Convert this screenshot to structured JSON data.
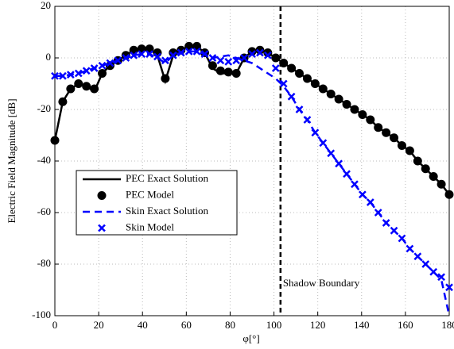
{
  "chart_data": {
    "type": "line",
    "xlabel": "φ[°]",
    "ylabel": "Electric Field Magnitude [dB]",
    "x": [
      0,
      3.6,
      7.2,
      10.8,
      14.4,
      18,
      21.6,
      25.2,
      28.8,
      32.4,
      36,
      39.6,
      43.2,
      46.8,
      50.4,
      54,
      57.6,
      61.2,
      64.8,
      68.4,
      72,
      75.6,
      79.2,
      82.8,
      86.4,
      90,
      93.6,
      97.2,
      100.8,
      104.4,
      108,
      111.6,
      115.2,
      118.8,
      122.4,
      126,
      129.6,
      133.2,
      136.8,
      140.4,
      144,
      147.6,
      151.2,
      154.8,
      158.4,
      162,
      165.6,
      169.2,
      172.8,
      176.4,
      180
    ],
    "series": [
      {
        "name": "PEC Exact Solution",
        "color": "#000000",
        "linestyle": "solid",
        "marker": "none",
        "values": [
          -32,
          -17,
          -12,
          -10,
          -11,
          -13,
          -6,
          -3,
          -1,
          1,
          3,
          3.5,
          3.5,
          1,
          -9,
          1,
          3,
          4.5,
          4.5,
          2,
          -4,
          -6,
          -6,
          -6,
          0,
          2.5,
          3,
          2,
          0,
          -2,
          -4,
          -6,
          -8,
          -10,
          -12,
          -14,
          -16,
          -18,
          -20,
          -22,
          -24,
          -27,
          -29,
          -31,
          -34,
          -36,
          -40,
          -43,
          -46,
          -49,
          -53
        ]
      },
      {
        "name": "PEC Model",
        "color": "#000000",
        "linestyle": "none",
        "marker": "circle",
        "values": [
          -32,
          -17,
          -12,
          -10,
          -11,
          -12,
          -6,
          -3,
          -1,
          1,
          3,
          3.5,
          3.5,
          2,
          -8,
          2,
          3,
          4.5,
          4.5,
          2,
          -3,
          -5,
          -5.5,
          -6,
          0,
          2.5,
          3,
          2,
          0,
          -2,
          -4,
          -6,
          -8,
          -10,
          -12,
          -14,
          -16,
          -18,
          -20,
          -22,
          -24,
          -27,
          -29,
          -31,
          -34,
          -36,
          -40,
          -43,
          -46,
          -49,
          -53
        ]
      },
      {
        "name": "Skin Exact Solution",
        "color": "#0000ff",
        "linestyle": "dashed",
        "marker": "none",
        "values": [
          -7,
          -7,
          -6.5,
          -6,
          -5,
          -4,
          -3,
          -2,
          -1,
          0,
          1,
          1.5,
          1.5,
          0,
          -2,
          1,
          2,
          2.5,
          2.5,
          1.5,
          0,
          0.5,
          1,
          0,
          -1,
          -2,
          -4,
          -6,
          -8,
          -11,
          -15,
          -20,
          -24,
          -29,
          -33,
          -37,
          -41,
          -45,
          -49,
          -53,
          -56,
          -60,
          -64,
          -67,
          -70,
          -74,
          -77,
          -80,
          -83,
          -86,
          -100
        ]
      },
      {
        "name": "Skin Model",
        "color": "#0000ff",
        "linestyle": "none",
        "marker": "x",
        "values": [
          -7,
          -7,
          -6.5,
          -6,
          -5,
          -4,
          -3,
          -2,
          -1,
          0,
          1,
          1.5,
          1.5,
          0.5,
          -1,
          1,
          2,
          2.5,
          2.5,
          1.5,
          0,
          -1,
          -1.5,
          -1,
          0,
          1.5,
          2,
          1,
          -4,
          -10,
          -15,
          -20,
          -24,
          -29,
          -33,
          -37,
          -41,
          -45,
          -49,
          -53,
          -56,
          -60,
          -64,
          -67,
          -70,
          -74,
          -77,
          -80,
          -83,
          -85,
          -89
        ]
      }
    ],
    "xlim": [
      0,
      180
    ],
    "xticks": [
      0,
      20,
      40,
      60,
      80,
      100,
      120,
      140,
      160,
      180
    ],
    "ylim": [
      -100,
      20
    ],
    "yticks": [
      -100,
      -80,
      -60,
      -40,
      -20,
      0,
      20
    ],
    "grid": true,
    "legend": "center left",
    "annotations": [
      {
        "x": 103,
        "text": "Shadow Boundary",
        "color": "#000000"
      }
    ]
  }
}
